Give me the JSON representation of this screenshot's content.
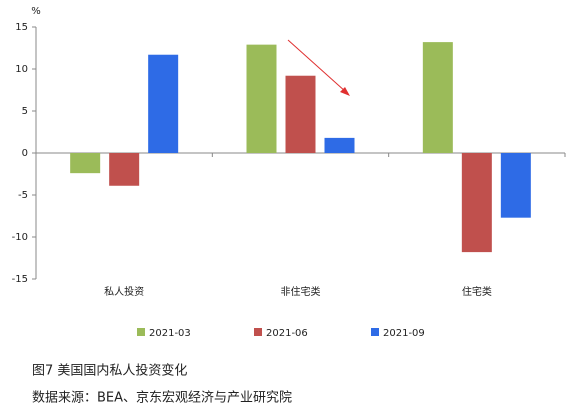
{
  "chart_data": {
    "type": "bar",
    "y_unit": "%",
    "caption": "图7 美国国内私人投资变化",
    "source": "数据来源：BEA、京东宏观经济与产业研究院",
    "categories": [
      "私人投资",
      "非住宅类",
      "住宅类"
    ],
    "series": [
      {
        "name": "2021-03",
        "color": "#9bbb59",
        "values": [
          -2.4,
          12.9,
          13.2
        ]
      },
      {
        "name": "2021-06",
        "color": "#c0504d",
        "values": [
          -3.9,
          9.2,
          -11.8
        ]
      },
      {
        "name": "2021-09",
        "color": "#2e6be6",
        "values": [
          11.7,
          1.8,
          -7.7
        ]
      }
    ],
    "ylim": [
      -15,
      15
    ],
    "yticks": [
      -15,
      -10,
      -5,
      0,
      5,
      10,
      15
    ],
    "legend": "bottom"
  }
}
